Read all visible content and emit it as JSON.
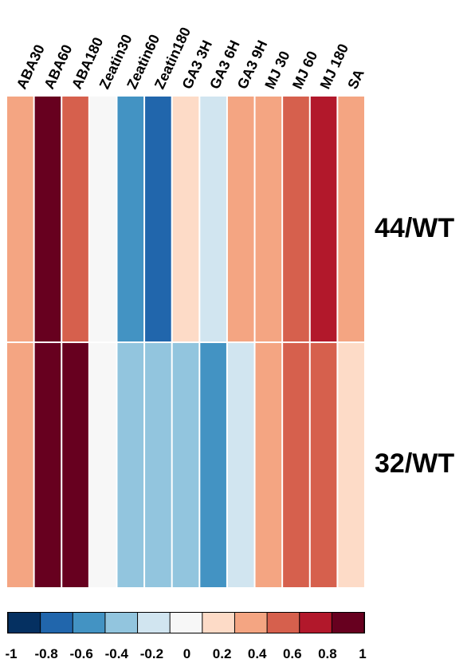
{
  "chart_data": {
    "type": "heatmap",
    "columns": [
      "ABA30",
      "ABA60",
      "ABA180",
      "Zeatin30",
      "Zeatin60",
      "Zeatin180",
      "GA3 3H",
      "GA3 6H",
      "GA3 9H",
      "MJ 30",
      "MJ 60",
      "MJ 180",
      "SA"
    ],
    "rows": [
      "44/WT",
      "32/WT"
    ],
    "values": [
      [
        0.4,
        1.0,
        0.6,
        0.0,
        -0.6,
        -0.8,
        0.2,
        -0.2,
        0.4,
        0.4,
        0.6,
        0.8,
        0.4
      ],
      [
        0.4,
        1.0,
        1.0,
        0.0,
        -0.4,
        -0.4,
        -0.4,
        -0.6,
        -0.2,
        0.4,
        0.6,
        0.6,
        0.2
      ]
    ],
    "colorbar": {
      "range": [
        -1,
        1
      ],
      "colors": [
        "#053061",
        "#2166ac",
        "#4393c3",
        "#92c5de",
        "#d1e5f0",
        "#f7f7f7",
        "#fddbc7",
        "#f4a582",
        "#d6604d",
        "#b2182b",
        "#67001f"
      ],
      "tick_labels": [
        "-1",
        "-0.8",
        "-0.6",
        "-0.4",
        "-0.2",
        "0",
        "0.2",
        "0.4",
        "0.6",
        "0.8",
        "1"
      ]
    }
  }
}
